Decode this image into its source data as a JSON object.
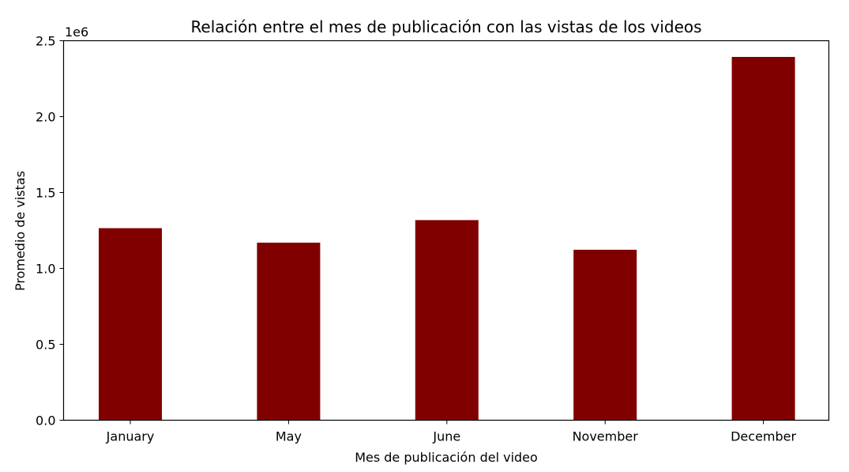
{
  "chart_data": {
    "type": "bar",
    "title": "Relación entre el mes de publicación con las vistas de los videos",
    "xlabel": "Mes de publicación del video",
    "ylabel": "Promedio de vistas",
    "y_offset_label": "1e6",
    "categories": [
      "January",
      "May",
      "June",
      "November",
      "December"
    ],
    "values": [
      1265000,
      1170000,
      1318000,
      1123000,
      2393000
    ],
    "ylim": [
      0,
      2500000
    ],
    "yticks": [
      0,
      500000,
      1000000,
      1500000,
      2000000,
      2500000
    ],
    "ytick_labels": [
      "0.0",
      "0.5",
      "1.0",
      "1.5",
      "2.0",
      "2.5"
    ],
    "bar_color": "#800000",
    "grid": false,
    "legend": "none"
  }
}
